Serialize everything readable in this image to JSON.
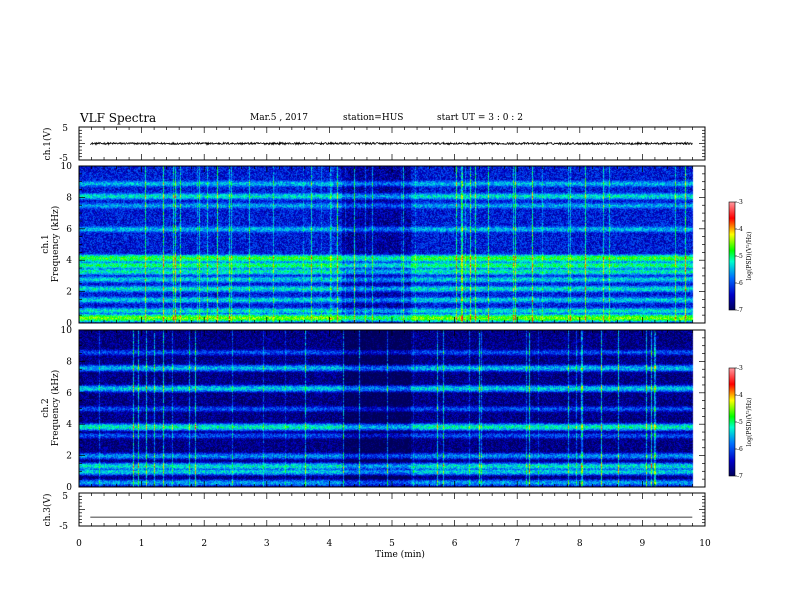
{
  "header": {
    "title": "VLF Spectra",
    "date": "Mar.5 , 2017",
    "station": "station=HUS",
    "start": "start UT = 3 : 0 : 2"
  },
  "chart_data": [
    {
      "type": "line",
      "panel": "ch1-waveform",
      "ylabel": "ch.1(V)",
      "ylim": [
        -5,
        5
      ],
      "yticks": [
        "5",
        "-5"
      ],
      "xlim": [
        0,
        10
      ],
      "series": [
        {
          "name": "ch.1",
          "level_volts": 0.0,
          "noise_amplitude_volts": 0.3
        }
      ]
    },
    {
      "type": "heatmap",
      "panel": "ch1-spectrogram",
      "ylabel": "ch.1 Frequency (kHz)",
      "ylabel_lines": [
        "ch.1",
        "Frequency (kHz)"
      ],
      "ylim": [
        0,
        10
      ],
      "yticks": [
        "0",
        "2",
        "4",
        "6",
        "8",
        "10"
      ],
      "xlim": [
        0,
        10
      ],
      "data_end_min": 9.8,
      "background_log_psd": -6.3,
      "bands_khz": [
        {
          "f": 0.35,
          "level": -4.6
        },
        {
          "f": 0.8,
          "level": -5.3
        },
        {
          "f": 1.5,
          "level": -5.4
        },
        {
          "f": 2.2,
          "level": -5.3
        },
        {
          "f": 2.8,
          "level": -5.4
        },
        {
          "f": 3.3,
          "level": -5.2
        },
        {
          "f": 3.7,
          "level": -5.0
        },
        {
          "f": 4.15,
          "level": -4.8
        },
        {
          "f": 6.0,
          "level": -5.5
        },
        {
          "f": 7.5,
          "level": -5.6
        },
        {
          "f": 8.1,
          "level": -5.3
        },
        {
          "f": 8.9,
          "level": -5.5
        }
      ],
      "dark_interval_min": [
        4.2,
        5.3
      ],
      "colorbar": {
        "label": "log(PSD)(V²/Hz)",
        "min": -7,
        "max": -3,
        "ticks": [
          "-3",
          "-4",
          "-5",
          "-6",
          "-7"
        ]
      }
    },
    {
      "type": "heatmap",
      "panel": "ch2-spectrogram",
      "ylabel": "ch.2 Frequency (kHz)",
      "ylabel_lines": [
        "ch.2",
        "Frequency (kHz)"
      ],
      "ylim": [
        0,
        10
      ],
      "yticks": [
        "0",
        "2",
        "4",
        "6",
        "8",
        "10"
      ],
      "xlim": [
        0,
        10
      ],
      "data_end_min": 9.8,
      "background_log_psd": -6.8,
      "bands_khz": [
        {
          "f": 0.3,
          "level": -5.6
        },
        {
          "f": 1.0,
          "level": -5.4
        },
        {
          "f": 1.35,
          "level": -5.3
        },
        {
          "f": 2.0,
          "level": -5.7
        },
        {
          "f": 3.3,
          "level": -6.0
        },
        {
          "f": 3.85,
          "level": -5.2
        },
        {
          "f": 5.0,
          "level": -6.0
        },
        {
          "f": 6.3,
          "level": -5.4
        },
        {
          "f": 7.6,
          "level": -5.5
        },
        {
          "f": 8.6,
          "level": -6.0
        }
      ],
      "dark_interval_min": [
        4.2,
        5.3
      ],
      "colorbar": {
        "label": "log(PSD)(V²/Hz)",
        "min": -7,
        "max": -3,
        "ticks": [
          "-3",
          "-4",
          "-5",
          "-6",
          "-7"
        ]
      }
    },
    {
      "type": "line",
      "panel": "ch3-waveform",
      "ylabel": "ch.3(V)",
      "ylim": [
        -5,
        5
      ],
      "yticks": [
        "5",
        "-5"
      ],
      "xlim": [
        0,
        10
      ],
      "xlabel": "Time (min)",
      "xticks": [
        "0",
        "1",
        "2",
        "3",
        "4",
        "5",
        "6",
        "7",
        "8",
        "9",
        "10"
      ],
      "series": [
        {
          "name": "ch.3",
          "level_volts": -2.3,
          "noise_amplitude_volts": 0.0
        }
      ]
    }
  ],
  "colors": {
    "trace": "#000000",
    "colormap": [
      "#00005a",
      "#0000c8",
      "#0070ff",
      "#00ffcc",
      "#00ff00",
      "#ffff00",
      "#ff0000",
      "#ff9aa0"
    ]
  }
}
